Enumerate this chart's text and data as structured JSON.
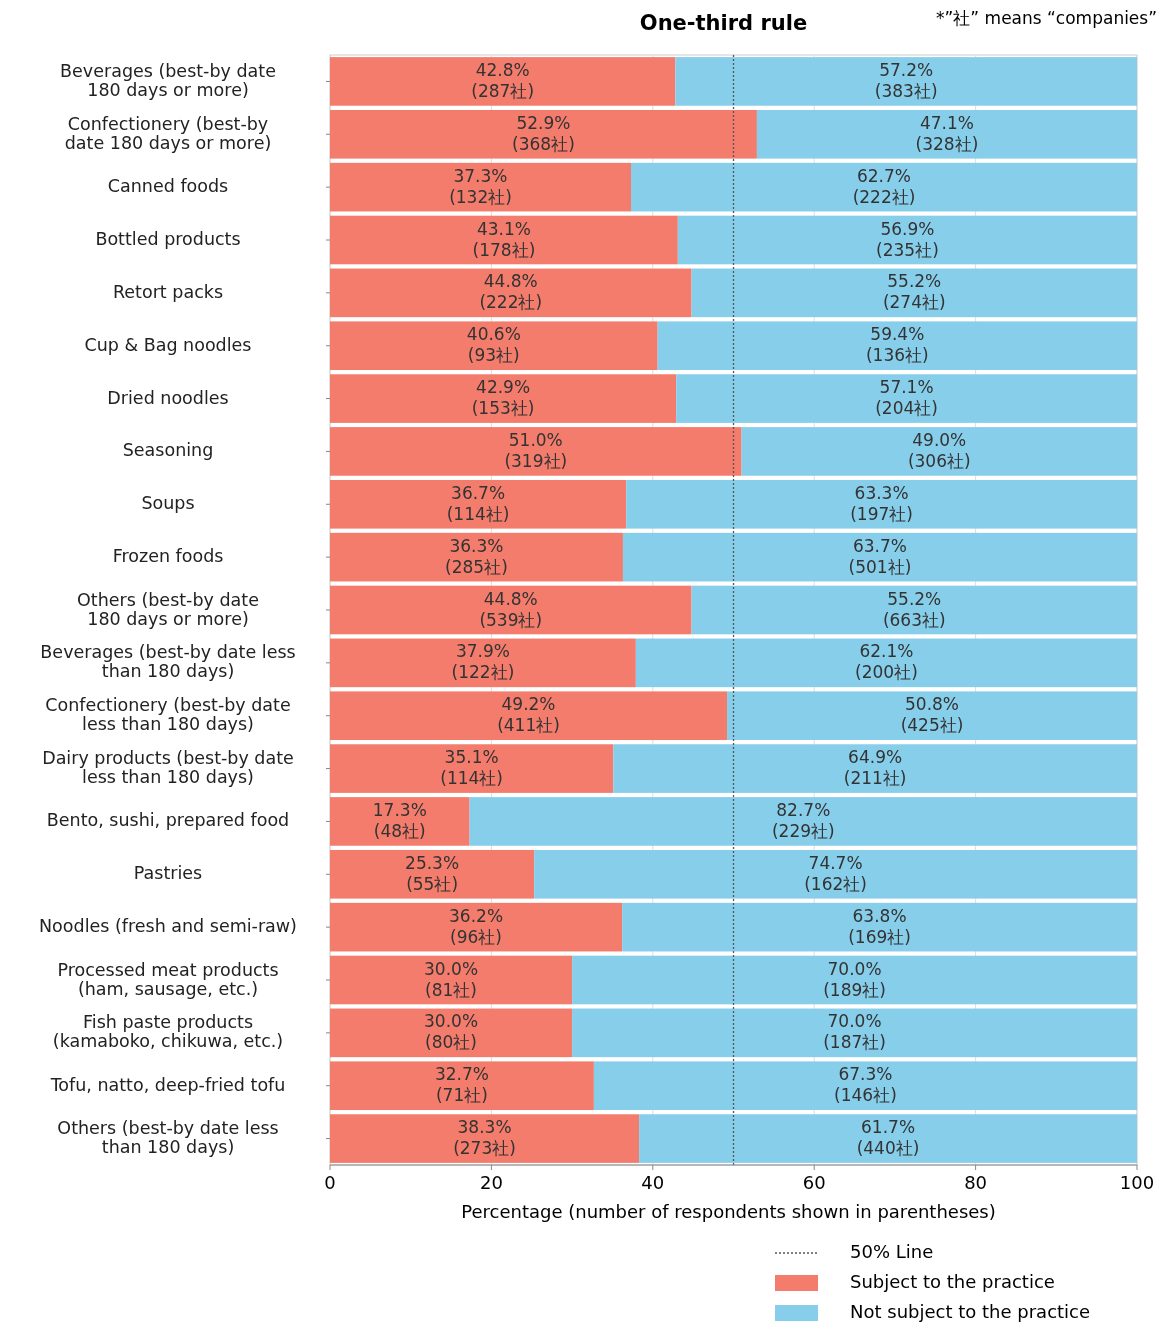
{
  "chart_data": {
    "type": "bar",
    "orientation": "horizontal",
    "stacked": true,
    "title": "One-third rule",
    "xlabel": "Percentage (number of respondents shown in parentheses)",
    "annotations": [
      "*”社” means “companies”"
    ],
    "categories": [
      "Beverages (best-by date\n180 days or more)",
      "Confectionery (best-by\ndate 180 days or more)",
      "Canned foods",
      "Bottled products",
      "Retort packs",
      "Cup & Bag noodles",
      "Dried noodles",
      "Seasoning",
      "Soups",
      "Frozen foods",
      "Others (best-by date\n180 days or more)",
      "Beverages (best-by date less\nthan 180 days)",
      "Confectionery (best-by date\nless than 180 days)",
      "Dairy products (best-by date\nless than 180 days)",
      "Bento, sushi, prepared food",
      "Pastries",
      "Noodles (fresh and semi-raw)",
      "Processed meat products\n(ham, sausage, etc.)",
      "Fish paste products\n(kamaboko, chikuwa, etc.)",
      "Tofu, natto, deep-fried tofu",
      "Others (best-by date less\nthan 180 days)"
    ],
    "series": [
      {
        "name": "Subject to the practice",
        "color": "#f47c6c",
        "values": [
          42.8,
          52.9,
          37.3,
          43.1,
          44.8,
          40.6,
          42.9,
          51.0,
          36.7,
          36.3,
          44.8,
          37.9,
          49.2,
          35.1,
          17.3,
          25.3,
          36.2,
          30.0,
          30.0,
          32.7,
          38.3
        ],
        "value_labels": [
          "42.8%\n(287社)",
          "52.9%\n(368社)",
          "37.3%\n(132社)",
          "43.1%\n(178社)",
          "44.8%\n(222社)",
          "40.6%\n(93社)",
          "42.9%\n(153社)",
          "51.0%\n(319社)",
          "36.7%\n(114社)",
          "36.3%\n(285社)",
          "44.8%\n(539社)",
          "37.9%\n(122社)",
          "49.2%\n(411社)",
          "35.1%\n(114社)",
          "17.3%\n(48社)",
          "25.3%\n(55社)",
          "36.2%\n(96社)",
          "30.0%\n(81社)",
          "30.0%\n(80社)",
          "32.7%\n(71社)",
          "38.3%\n(273社)"
        ]
      },
      {
        "name": "Not subject to the practice",
        "color": "#87ceeb",
        "values": [
          57.2,
          47.1,
          62.7,
          56.9,
          55.2,
          59.4,
          57.1,
          49.0,
          63.3,
          63.7,
          55.2,
          62.1,
          50.8,
          64.9,
          82.7,
          74.7,
          63.8,
          70.0,
          70.0,
          67.3,
          61.7
        ],
        "value_labels": [
          "57.2%\n(383社)",
          "47.1%\n(328社)",
          "62.7%\n(222社)",
          "56.9%\n(235社)",
          "55.2%\n(274社)",
          "59.4%\n(136社)",
          "57.1%\n(204社)",
          "49.0%\n(306社)",
          "63.3%\n(197社)",
          "63.7%\n(501社)",
          "55.2%\n(663社)",
          "62.1%\n(200社)",
          "50.8%\n(425社)",
          "64.9%\n(211社)",
          "82.7%\n(229社)",
          "74.7%\n(162社)",
          "63.8%\n(169社)",
          "70.0%\n(189社)",
          "70.0%\n(187社)",
          "67.3%\n(146社)",
          "61.7%\n(440社)"
        ]
      }
    ],
    "xlim": [
      0,
      100
    ],
    "xticks": [
      0,
      20,
      40,
      60,
      80,
      100
    ],
    "grid": "x",
    "legend": "bottom",
    "ref_lines": [
      {
        "axis": "x",
        "value": 50,
        "label": "50% Line",
        "line_style": "dotted",
        "color": "#555555"
      }
    ]
  }
}
